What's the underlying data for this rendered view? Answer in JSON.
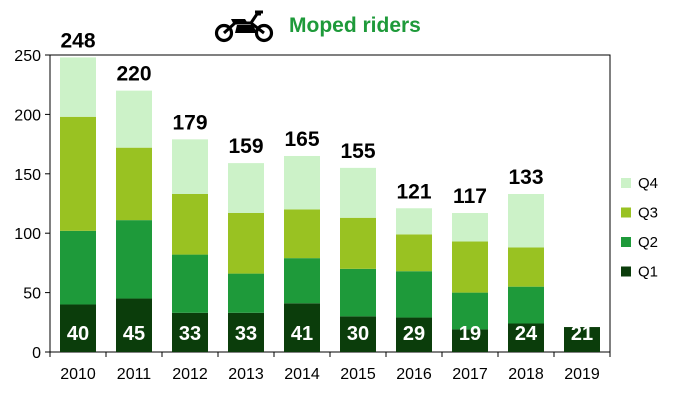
{
  "chart_data": {
    "type": "bar",
    "stacked": true,
    "title": "Moped riders",
    "title_icon": "moped-icon",
    "categories": [
      "2010",
      "2011",
      "2012",
      "2013",
      "2014",
      "2015",
      "2016",
      "2017",
      "2018",
      "2019"
    ],
    "series": [
      {
        "name": "Q1",
        "color": "#0b3d0b",
        "values": [
          40,
          45,
          33,
          33,
          41,
          30,
          29,
          19,
          24,
          21
        ]
      },
      {
        "name": "Q2",
        "color": "#1e9a3a",
        "values": [
          62,
          66,
          49,
          33,
          38,
          40,
          39,
          31,
          31,
          null
        ]
      },
      {
        "name": "Q3",
        "color": "#99c222",
        "values": [
          96,
          61,
          51,
          51,
          41,
          43,
          31,
          43,
          33,
          null
        ]
      },
      {
        "name": "Q4",
        "color": "#ccf2c8",
        "values": [
          50,
          48,
          46,
          42,
          45,
          42,
          22,
          24,
          45,
          null
        ]
      }
    ],
    "totals": [
      "248",
      "220",
      "179",
      "159",
      "165",
      "155",
      "121",
      "117",
      "133",
      ""
    ],
    "q1_labels": [
      "40",
      "45",
      "33",
      "33",
      "41",
      "30",
      "29",
      "19",
      "24",
      "21"
    ],
    "yticks": [
      "0",
      "50",
      "100",
      "150",
      "200",
      "250"
    ],
    "ylim": [
      0,
      250
    ],
    "grid": false,
    "legend_position": "right",
    "legend": [
      "Q4",
      "Q3",
      "Q2",
      "Q1"
    ]
  }
}
